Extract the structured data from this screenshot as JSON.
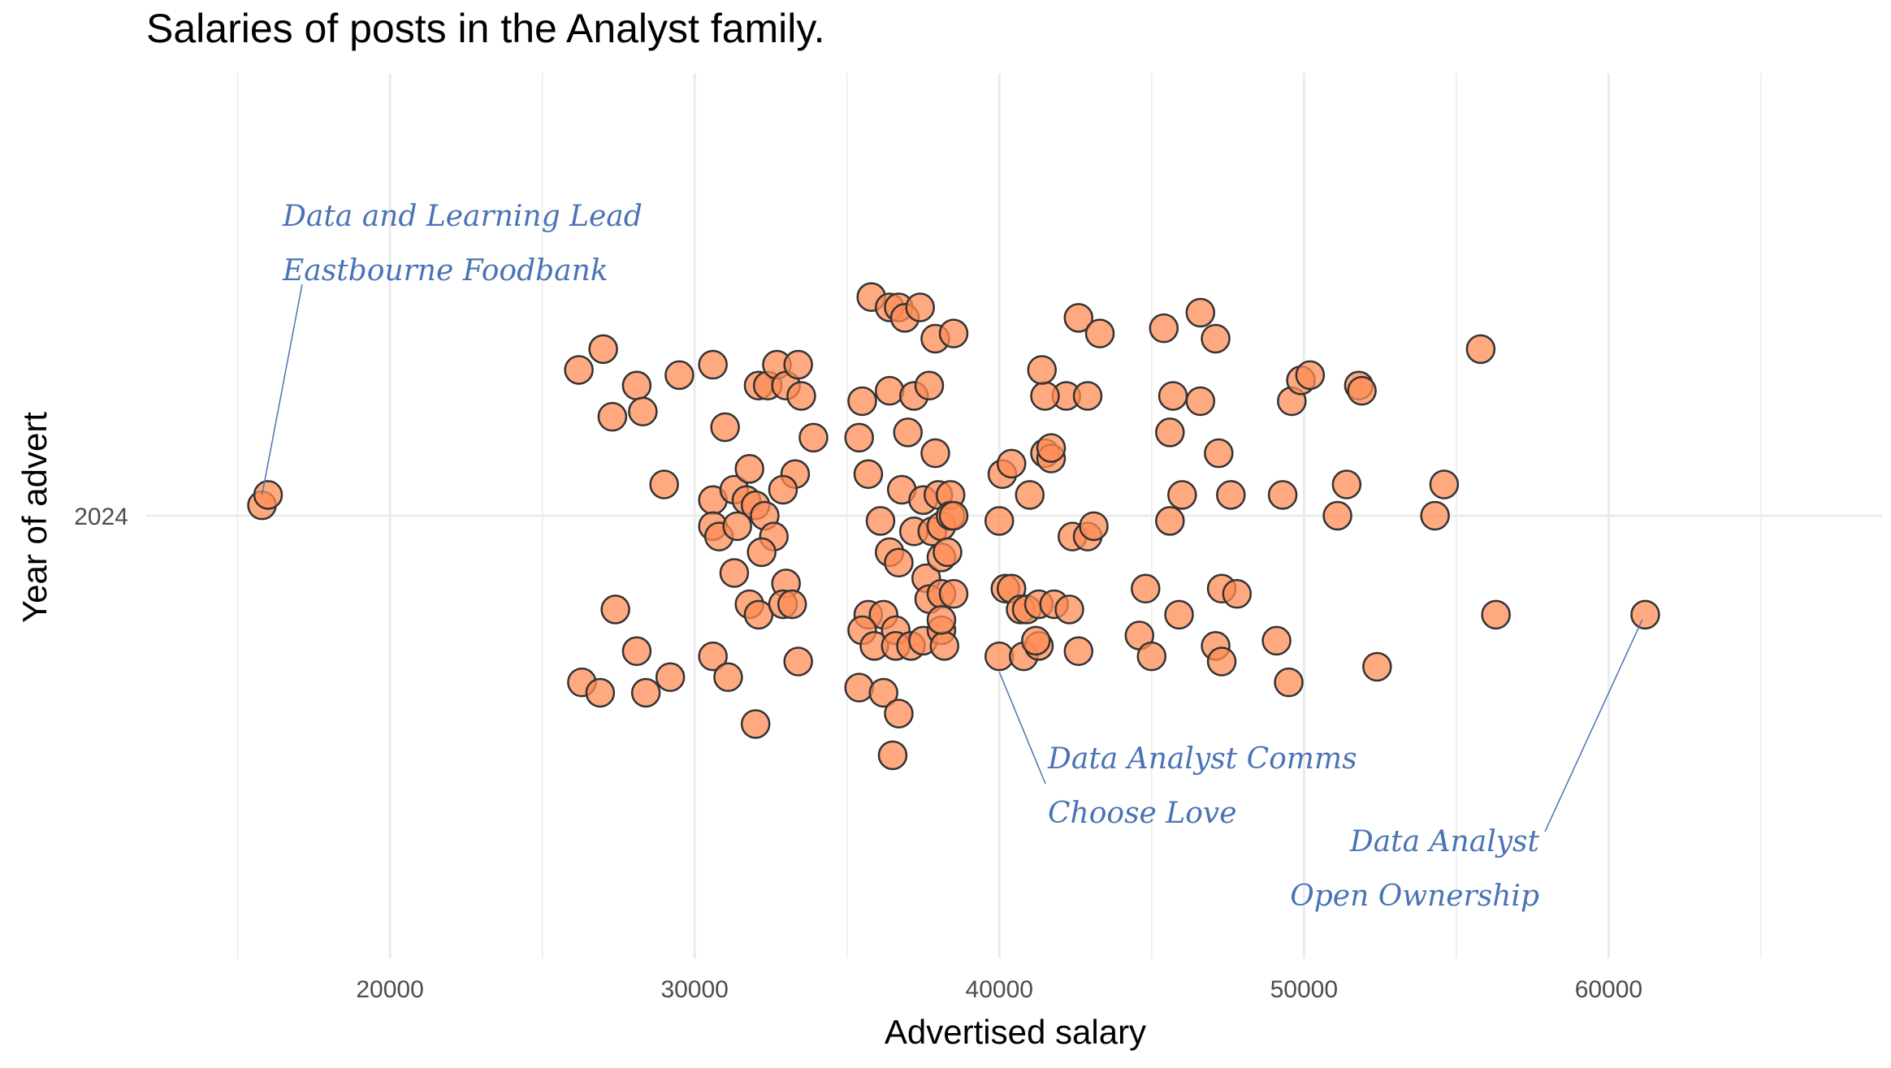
{
  "chart_data": {
    "type": "scatter",
    "title": "Salaries of posts in the Analyst family.",
    "xlabel": "Advertised salary",
    "ylabel": "Year of advert",
    "xlim": [
      12000,
      69000
    ],
    "ylim": [
      2023.15,
      2024.85
    ],
    "x_ticks": [
      20000,
      30000,
      40000,
      50000,
      60000
    ],
    "x_tick_labels": [
      "20000",
      "30000",
      "40000",
      "50000",
      "60000"
    ],
    "y_ticks": [
      2024
    ],
    "y_tick_labels": [
      "2024"
    ],
    "grid": true,
    "point_style": {
      "fill": "#FF8C55",
      "stroke": "#333333",
      "opacity": 0.75
    },
    "annotation_color": "#4A73B5",
    "annotations": [
      {
        "lines": [
          "Data and Learning Lead",
          "Eastbourne Foodbank"
        ],
        "point": [
          15800,
          2024.04
        ]
      },
      {
        "lines": [
          "Data Analyst Comms",
          "Choose Love"
        ],
        "point": [
          40000,
          2023.7
        ]
      },
      {
        "lines": [
          "Data Analyst",
          "Open Ownership"
        ],
        "point": [
          61100,
          2023.8
        ]
      }
    ],
    "points": [
      [
        15800,
        2024.02
      ],
      [
        16000,
        2024.04
      ],
      [
        26200,
        2024.28
      ],
      [
        27000,
        2024.32
      ],
      [
        27300,
        2024.19
      ],
      [
        28100,
        2024.25
      ],
      [
        28300,
        2024.2
      ],
      [
        29000,
        2024.06
      ],
      [
        29500,
        2024.27
      ],
      [
        30600,
        2024.29
      ],
      [
        31000,
        2024.17
      ],
      [
        30600,
        2024.03
      ],
      [
        31300,
        2024.05
      ],
      [
        31800,
        2024.09
      ],
      [
        32100,
        2024.25
      ],
      [
        32400,
        2024.25
      ],
      [
        32700,
        2024.29
      ],
      [
        33000,
        2024.25
      ],
      [
        33400,
        2024.29
      ],
      [
        33500,
        2024.23
      ],
      [
        33900,
        2024.15
      ],
      [
        33300,
        2024.08
      ],
      [
        32900,
        2024.05
      ],
      [
        31700,
        2024.03
      ],
      [
        32000,
        2024.02
      ],
      [
        32300,
        2024.0
      ],
      [
        30600,
        2023.98
      ],
      [
        30800,
        2023.96
      ],
      [
        31400,
        2023.98
      ],
      [
        32600,
        2023.96
      ],
      [
        32200,
        2023.93
      ],
      [
        31300,
        2023.89
      ],
      [
        33000,
        2023.87
      ],
      [
        31800,
        2023.83
      ],
      [
        32100,
        2023.81
      ],
      [
        32900,
        2023.83
      ],
      [
        33200,
        2023.83
      ],
      [
        27400,
        2023.82
      ],
      [
        28100,
        2023.74
      ],
      [
        26300,
        2023.68
      ],
      [
        26900,
        2023.66
      ],
      [
        28400,
        2023.66
      ],
      [
        29200,
        2023.69
      ],
      [
        30600,
        2023.73
      ],
      [
        31100,
        2023.69
      ],
      [
        32000,
        2023.6
      ],
      [
        33400,
        2023.72
      ],
      [
        35800,
        2024.42
      ],
      [
        36400,
        2024.4
      ],
      [
        36700,
        2024.4
      ],
      [
        36900,
        2024.38
      ],
      [
        37400,
        2024.4
      ],
      [
        37900,
        2024.34
      ],
      [
        38500,
        2024.35
      ],
      [
        35500,
        2024.22
      ],
      [
        36400,
        2024.24
      ],
      [
        37200,
        2024.23
      ],
      [
        37700,
        2024.25
      ],
      [
        37000,
        2024.16
      ],
      [
        35400,
        2024.15
      ],
      [
        35700,
        2024.08
      ],
      [
        37900,
        2024.12
      ],
      [
        36100,
        2023.99
      ],
      [
        36800,
        2024.05
      ],
      [
        37500,
        2024.03
      ],
      [
        38000,
        2024.04
      ],
      [
        38400,
        2024.04
      ],
      [
        37200,
        2023.97
      ],
      [
        37800,
        2023.97
      ],
      [
        38100,
        2023.98
      ],
      [
        38400,
        2024.0
      ],
      [
        38500,
        2024.0
      ],
      [
        36400,
        2023.93
      ],
      [
        36700,
        2023.91
      ],
      [
        37600,
        2023.88
      ],
      [
        38100,
        2023.92
      ],
      [
        38300,
        2023.93
      ],
      [
        37700,
        2023.84
      ],
      [
        38100,
        2023.85
      ],
      [
        38500,
        2023.85
      ],
      [
        35700,
        2023.81
      ],
      [
        36200,
        2023.81
      ],
      [
        35500,
        2023.78
      ],
      [
        35900,
        2023.75
      ],
      [
        36600,
        2023.78
      ],
      [
        36600,
        2023.75
      ],
      [
        37100,
        2023.75
      ],
      [
        37500,
        2023.76
      ],
      [
        38100,
        2023.78
      ],
      [
        38200,
        2023.75
      ],
      [
        38100,
        2023.8
      ],
      [
        35400,
        2023.67
      ],
      [
        36200,
        2023.66
      ],
      [
        36700,
        2023.62
      ],
      [
        36500,
        2023.54
      ],
      [
        40000,
        2023.99
      ],
      [
        40100,
        2024.08
      ],
      [
        40400,
        2024.1
      ],
      [
        41000,
        2024.04
      ],
      [
        41500,
        2024.12
      ],
      [
        41700,
        2024.11
      ],
      [
        41700,
        2024.13
      ],
      [
        42200,
        2024.23
      ],
      [
        41500,
        2024.23
      ],
      [
        41400,
        2024.28
      ],
      [
        42600,
        2024.38
      ],
      [
        43300,
        2024.35
      ],
      [
        42900,
        2024.23
      ],
      [
        42400,
        2023.96
      ],
      [
        42900,
        2023.96
      ],
      [
        43100,
        2023.98
      ],
      [
        40200,
        2023.86
      ],
      [
        40400,
        2023.86
      ],
      [
        40700,
        2023.82
      ],
      [
        40900,
        2023.82
      ],
      [
        41300,
        2023.83
      ],
      [
        41800,
        2023.83
      ],
      [
        42300,
        2023.82
      ],
      [
        40000,
        2023.73
      ],
      [
        40800,
        2023.73
      ],
      [
        41300,
        2023.75
      ],
      [
        41200,
        2023.76
      ],
      [
        42600,
        2023.74
      ],
      [
        45400,
        2024.36
      ],
      [
        46600,
        2024.39
      ],
      [
        47100,
        2024.34
      ],
      [
        45700,
        2024.23
      ],
      [
        46600,
        2024.22
      ],
      [
        45600,
        2024.16
      ],
      [
        47200,
        2024.12
      ],
      [
        46000,
        2024.04
      ],
      [
        47600,
        2024.04
      ],
      [
        45600,
        2023.99
      ],
      [
        44800,
        2023.86
      ],
      [
        45900,
        2023.81
      ],
      [
        47300,
        2023.86
      ],
      [
        47800,
        2023.85
      ],
      [
        44600,
        2023.77
      ],
      [
        45000,
        2023.73
      ],
      [
        47100,
        2023.75
      ],
      [
        47300,
        2023.72
      ],
      [
        49300,
        2024.04
      ],
      [
        49600,
        2024.22
      ],
      [
        49900,
        2024.26
      ],
      [
        50200,
        2024.27
      ],
      [
        51100,
        2024.0
      ],
      [
        51400,
        2024.06
      ],
      [
        51800,
        2024.25
      ],
      [
        51900,
        2024.24
      ],
      [
        49100,
        2023.76
      ],
      [
        49500,
        2023.68
      ],
      [
        52400,
        2023.71
      ],
      [
        54300,
        2024.0
      ],
      [
        54600,
        2024.06
      ],
      [
        55800,
        2024.32
      ],
      [
        56300,
        2023.81
      ],
      [
        61200,
        2023.81
      ]
    ]
  }
}
